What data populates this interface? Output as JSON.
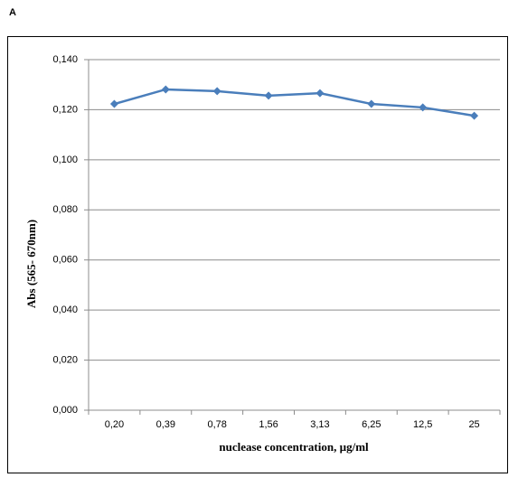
{
  "chart_data": {
    "type": "line",
    "panel_label": "A",
    "x_label": "nuclease concentration,  µg/ml",
    "y_label": "Abs (565- 670nm)",
    "categories": [
      "0,20",
      "0,39",
      "0,78",
      "1,56",
      "3,13",
      "6,25",
      "12,5",
      "25"
    ],
    "series": [
      {
        "color": "#4a7ebb",
        "values": [
          0.1223,
          0.1281,
          0.1274,
          0.1256,
          0.1266,
          0.1223,
          0.1209,
          0.1176
        ]
      }
    ],
    "ylim": [
      0,
      0.14
    ],
    "yticks": [
      {
        "value": 0,
        "label": "0,000"
      },
      {
        "value": 0.02,
        "label": "0,020"
      },
      {
        "value": 0.04,
        "label": "0,040"
      },
      {
        "value": 0.06,
        "label": "0,060"
      },
      {
        "value": 0.08,
        "label": "0,080"
      },
      {
        "value": 0.1,
        "label": "0,100"
      },
      {
        "value": 0.12,
        "label": "0,120"
      },
      {
        "value": 0.14,
        "label": "0,140"
      }
    ],
    "grid": true
  }
}
